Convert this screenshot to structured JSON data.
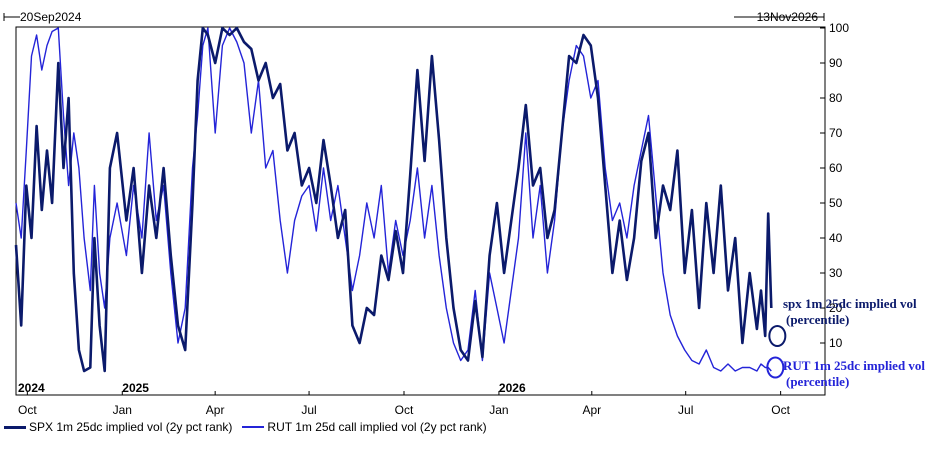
{
  "range": {
    "start": "20Sep2024",
    "end": "13Nov2026"
  },
  "chart_data": {
    "type": "line",
    "ylim": [
      0,
      100
    ],
    "yticks": [
      10,
      20,
      30,
      40,
      50,
      60,
      70,
      80,
      90,
      100
    ],
    "x_range": [
      "2024-09-20",
      "2026-11-13"
    ],
    "month_ticks": [
      {
        "date": "2024-10-01",
        "label": "Oct"
      },
      {
        "date": "2025-01-01",
        "label": "Jan"
      },
      {
        "date": "2025-04-01",
        "label": "Apr"
      },
      {
        "date": "2025-07-01",
        "label": "Jul"
      },
      {
        "date": "2025-10-01",
        "label": "Oct"
      },
      {
        "date": "2026-01-01",
        "label": "Jan"
      },
      {
        "date": "2026-04-01",
        "label": "Apr"
      },
      {
        "date": "2026-07-01",
        "label": "Jul"
      },
      {
        "date": "2026-10-01",
        "label": "Oct"
      }
    ],
    "year_labels": [
      {
        "date": "2024-09-21",
        "label": "2024"
      },
      {
        "date": "2025-01-01",
        "label": "2025"
      },
      {
        "date": "2026-01-01",
        "label": "2026"
      }
    ],
    "grid": false,
    "legend_position": "bottom",
    "series": [
      {
        "name": "SPX 1m 25dc implied vol (2y pct rank)",
        "color": "#0b1a6b",
        "width": 2.6,
        "points": [
          [
            "2024-09-20",
            38
          ],
          [
            "2024-09-25",
            15
          ],
          [
            "2024-09-30",
            55
          ],
          [
            "2024-10-05",
            40
          ],
          [
            "2024-10-10",
            72
          ],
          [
            "2024-10-15",
            48
          ],
          [
            "2024-10-20",
            65
          ],
          [
            "2024-10-25",
            50
          ],
          [
            "2024-10-31",
            90
          ],
          [
            "2024-11-05",
            60
          ],
          [
            "2024-11-10",
            80
          ],
          [
            "2024-11-15",
            30
          ],
          [
            "2024-11-20",
            8
          ],
          [
            "2024-11-25",
            2
          ],
          [
            "2024-12-01",
            3
          ],
          [
            "2024-12-05",
            40
          ],
          [
            "2024-12-10",
            15
          ],
          [
            "2024-12-15",
            2
          ],
          [
            "2024-12-20",
            60
          ],
          [
            "2024-12-27",
            70
          ],
          [
            "2025-01-05",
            45
          ],
          [
            "2025-01-12",
            60
          ],
          [
            "2025-01-20",
            30
          ],
          [
            "2025-01-27",
            55
          ],
          [
            "2025-02-03",
            40
          ],
          [
            "2025-02-10",
            60
          ],
          [
            "2025-02-17",
            35
          ],
          [
            "2025-02-24",
            15
          ],
          [
            "2025-03-03",
            8
          ],
          [
            "2025-03-10",
            50
          ],
          [
            "2025-03-15",
            85
          ],
          [
            "2025-03-20",
            100
          ],
          [
            "2025-03-25",
            98
          ],
          [
            "2025-04-01",
            90
          ],
          [
            "2025-04-08",
            100
          ],
          [
            "2025-04-15",
            98
          ],
          [
            "2025-04-22",
            100
          ],
          [
            "2025-04-29",
            96
          ],
          [
            "2025-05-06",
            94
          ],
          [
            "2025-05-13",
            85
          ],
          [
            "2025-05-20",
            90
          ],
          [
            "2025-05-27",
            80
          ],
          [
            "2025-06-03",
            84
          ],
          [
            "2025-06-10",
            65
          ],
          [
            "2025-06-17",
            70
          ],
          [
            "2025-06-24",
            55
          ],
          [
            "2025-07-01",
            60
          ],
          [
            "2025-07-08",
            50
          ],
          [
            "2025-07-15",
            68
          ],
          [
            "2025-07-22",
            55
          ],
          [
            "2025-07-29",
            40
          ],
          [
            "2025-08-05",
            48
          ],
          [
            "2025-08-12",
            15
          ],
          [
            "2025-08-19",
            10
          ],
          [
            "2025-08-26",
            20
          ],
          [
            "2025-09-02",
            18
          ],
          [
            "2025-09-09",
            35
          ],
          [
            "2025-09-16",
            28
          ],
          [
            "2025-09-23",
            42
          ],
          [
            "2025-09-30",
            30
          ],
          [
            "2025-10-07",
            58
          ],
          [
            "2025-10-14",
            88
          ],
          [
            "2025-10-21",
            62
          ],
          [
            "2025-10-28",
            92
          ],
          [
            "2025-11-04",
            68
          ],
          [
            "2025-11-11",
            40
          ],
          [
            "2025-11-18",
            20
          ],
          [
            "2025-11-25",
            8
          ],
          [
            "2025-12-02",
            5
          ],
          [
            "2025-12-09",
            22
          ],
          [
            "2025-12-16",
            6
          ],
          [
            "2025-12-23",
            35
          ],
          [
            "2025-12-30",
            50
          ],
          [
            "2026-01-06",
            30
          ],
          [
            "2026-01-13",
            45
          ],
          [
            "2026-01-20",
            60
          ],
          [
            "2026-01-27",
            78
          ],
          [
            "2026-02-03",
            55
          ],
          [
            "2026-02-10",
            60
          ],
          [
            "2026-02-17",
            40
          ],
          [
            "2026-02-24",
            48
          ],
          [
            "2026-03-03",
            70
          ],
          [
            "2026-03-10",
            92
          ],
          [
            "2026-03-17",
            90
          ],
          [
            "2026-03-24",
            98
          ],
          [
            "2026-03-31",
            95
          ],
          [
            "2026-04-07",
            80
          ],
          [
            "2026-04-14",
            55
          ],
          [
            "2026-04-21",
            30
          ],
          [
            "2026-04-28",
            45
          ],
          [
            "2026-05-05",
            28
          ],
          [
            "2026-05-12",
            40
          ],
          [
            "2026-05-19",
            62
          ],
          [
            "2026-05-26",
            70
          ],
          [
            "2026-06-02",
            40
          ],
          [
            "2026-06-09",
            55
          ],
          [
            "2026-06-16",
            48
          ],
          [
            "2026-06-23",
            65
          ],
          [
            "2026-06-30",
            30
          ],
          [
            "2026-07-07",
            48
          ],
          [
            "2026-07-14",
            20
          ],
          [
            "2026-07-21",
            50
          ],
          [
            "2026-07-28",
            30
          ],
          [
            "2026-08-04",
            55
          ],
          [
            "2026-08-11",
            25
          ],
          [
            "2026-08-18",
            40
          ],
          [
            "2026-08-25",
            10
          ],
          [
            "2026-09-01",
            30
          ],
          [
            "2026-09-08",
            14
          ],
          [
            "2026-09-12",
            25
          ],
          [
            "2026-09-16",
            12
          ],
          [
            "2026-09-19",
            47
          ],
          [
            "2026-09-22",
            20
          ]
        ]
      },
      {
        "name": "RUT 1m 25d call implied vol (2y pct rank)",
        "color": "#2424d8",
        "width": 1.4,
        "points": [
          [
            "2024-09-20",
            50
          ],
          [
            "2024-09-25",
            40
          ],
          [
            "2024-09-30",
            65
          ],
          [
            "2024-10-05",
            92
          ],
          [
            "2024-10-10",
            98
          ],
          [
            "2024-10-15",
            88
          ],
          [
            "2024-10-20",
            95
          ],
          [
            "2024-10-25",
            99
          ],
          [
            "2024-10-31",
            100
          ],
          [
            "2024-11-05",
            75
          ],
          [
            "2024-11-10",
            55
          ],
          [
            "2024-11-15",
            70
          ],
          [
            "2024-11-20",
            60
          ],
          [
            "2024-11-25",
            40
          ],
          [
            "2024-12-01",
            25
          ],
          [
            "2024-12-05",
            55
          ],
          [
            "2024-12-10",
            30
          ],
          [
            "2024-12-15",
            20
          ],
          [
            "2024-12-20",
            40
          ],
          [
            "2024-12-27",
            50
          ],
          [
            "2025-01-05",
            35
          ],
          [
            "2025-01-12",
            55
          ],
          [
            "2025-01-20",
            40
          ],
          [
            "2025-01-27",
            70
          ],
          [
            "2025-02-03",
            45
          ],
          [
            "2025-02-10",
            55
          ],
          [
            "2025-02-17",
            30
          ],
          [
            "2025-02-24",
            10
          ],
          [
            "2025-03-03",
            20
          ],
          [
            "2025-03-10",
            60
          ],
          [
            "2025-03-15",
            75
          ],
          [
            "2025-03-20",
            95
          ],
          [
            "2025-03-25",
            100
          ],
          [
            "2025-04-01",
            70
          ],
          [
            "2025-04-08",
            95
          ],
          [
            "2025-04-15",
            100
          ],
          [
            "2025-04-22",
            96
          ],
          [
            "2025-04-29",
            90
          ],
          [
            "2025-05-06",
            70
          ],
          [
            "2025-05-13",
            85
          ],
          [
            "2025-05-20",
            60
          ],
          [
            "2025-05-27",
            65
          ],
          [
            "2025-06-03",
            45
          ],
          [
            "2025-06-10",
            30
          ],
          [
            "2025-06-17",
            45
          ],
          [
            "2025-06-24",
            52
          ],
          [
            "2025-07-01",
            55
          ],
          [
            "2025-07-08",
            42
          ],
          [
            "2025-07-15",
            60
          ],
          [
            "2025-07-22",
            45
          ],
          [
            "2025-07-29",
            55
          ],
          [
            "2025-08-05",
            40
          ],
          [
            "2025-08-12",
            25
          ],
          [
            "2025-08-19",
            35
          ],
          [
            "2025-08-26",
            50
          ],
          [
            "2025-09-02",
            40
          ],
          [
            "2025-09-09",
            55
          ],
          [
            "2025-09-16",
            30
          ],
          [
            "2025-09-23",
            45
          ],
          [
            "2025-09-30",
            35
          ],
          [
            "2025-10-07",
            45
          ],
          [
            "2025-10-14",
            60
          ],
          [
            "2025-10-21",
            40
          ],
          [
            "2025-10-28",
            55
          ],
          [
            "2025-11-04",
            35
          ],
          [
            "2025-11-11",
            20
          ],
          [
            "2025-11-18",
            10
          ],
          [
            "2025-11-25",
            5
          ],
          [
            "2025-12-02",
            8
          ],
          [
            "2025-12-09",
            25
          ],
          [
            "2025-12-16",
            5
          ],
          [
            "2025-12-23",
            30
          ],
          [
            "2025-12-30",
            20
          ],
          [
            "2026-01-06",
            10
          ],
          [
            "2026-01-13",
            25
          ],
          [
            "2026-01-20",
            40
          ],
          [
            "2026-01-27",
            70
          ],
          [
            "2026-02-03",
            40
          ],
          [
            "2026-02-10",
            55
          ],
          [
            "2026-02-17",
            30
          ],
          [
            "2026-02-24",
            45
          ],
          [
            "2026-03-03",
            70
          ],
          [
            "2026-03-10",
            85
          ],
          [
            "2026-03-17",
            95
          ],
          [
            "2026-03-24",
            92
          ],
          [
            "2026-03-31",
            80
          ],
          [
            "2026-04-07",
            85
          ],
          [
            "2026-04-14",
            60
          ],
          [
            "2026-04-21",
            45
          ],
          [
            "2026-04-28",
            50
          ],
          [
            "2026-05-05",
            40
          ],
          [
            "2026-05-12",
            55
          ],
          [
            "2026-05-19",
            65
          ],
          [
            "2026-05-26",
            75
          ],
          [
            "2026-06-02",
            52
          ],
          [
            "2026-06-09",
            30
          ],
          [
            "2026-06-16",
            18
          ],
          [
            "2026-06-23",
            12
          ],
          [
            "2026-06-30",
            8
          ],
          [
            "2026-07-07",
            5
          ],
          [
            "2026-07-14",
            4
          ],
          [
            "2026-07-21",
            8
          ],
          [
            "2026-07-28",
            3
          ],
          [
            "2026-08-04",
            2
          ],
          [
            "2026-08-11",
            4
          ],
          [
            "2026-08-18",
            2
          ],
          [
            "2026-08-25",
            3
          ],
          [
            "2026-09-01",
            3
          ],
          [
            "2026-09-08",
            2
          ],
          [
            "2026-09-12",
            4
          ],
          [
            "2026-09-16",
            3
          ],
          [
            "2026-09-19",
            3
          ],
          [
            "2026-09-22",
            2
          ]
        ]
      }
    ],
    "annotations": [
      {
        "label_lines": [
          "spx 1m 25dc implied vol",
          "(percentile)"
        ],
        "color": "#0b1a6b",
        "date": "2026-09-22",
        "value": 12
      },
      {
        "label_lines": [
          "RUT 1m 25dc implied vol",
          "(percentile)"
        ],
        "color": "#2424d8",
        "date": "2026-09-22",
        "value": 3
      }
    ]
  }
}
